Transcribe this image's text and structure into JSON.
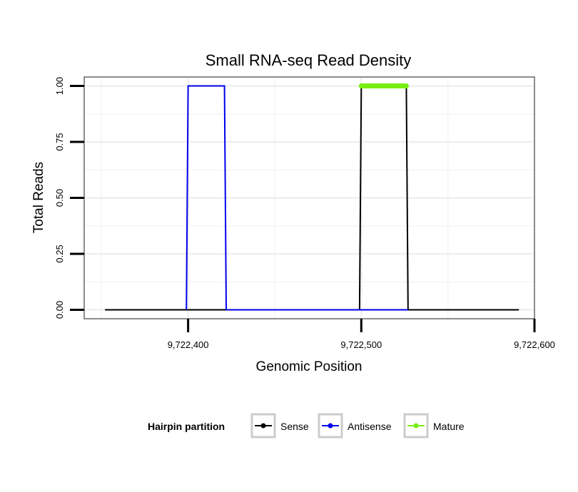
{
  "chart_data": {
    "type": "line",
    "title": "Small RNA-seq Read Density",
    "xlabel": "Genomic Position",
    "ylabel": "Total Reads",
    "xlim": [
      9722340,
      9722600
    ],
    "ylim": [
      -0.04,
      1.04
    ],
    "x_ticks": [
      {
        "value": 9722400,
        "label": "9,722,400"
      },
      {
        "value": 9722500,
        "label": "9,722,500"
      },
      {
        "value": 9722600,
        "label": "9,722,600"
      }
    ],
    "y_ticks": [
      {
        "value": 0,
        "label": "0.00"
      },
      {
        "value": 0.25,
        "label": "0.25"
      },
      {
        "value": 0.5,
        "label": "0.50"
      },
      {
        "value": 0.75,
        "label": "0.75"
      },
      {
        "value": 1,
        "label": "1.00"
      }
    ],
    "grid": true,
    "legend": {
      "title": "Hairpin partition",
      "position": "bottom",
      "entries": [
        "Sense",
        "Antisense",
        "Mature"
      ]
    },
    "series": [
      {
        "name": "Sense",
        "color": "#000000",
        "x": [
          9722352,
          9722499,
          9722500,
          9722526,
          9722527,
          9722591
        ],
        "y": [
          0,
          0,
          1,
          1,
          0,
          0
        ]
      },
      {
        "name": "Antisense",
        "color": "#0000ee",
        "x": [
          9722399,
          9722400,
          9722421,
          9722422,
          9722499,
          9722527
        ],
        "y": [
          0,
          1,
          1,
          0,
          0,
          0
        ]
      },
      {
        "name": "Mature",
        "color": "#77ee11",
        "x": [
          9722500,
          9722526
        ],
        "y": [
          1,
          1
        ]
      }
    ]
  }
}
